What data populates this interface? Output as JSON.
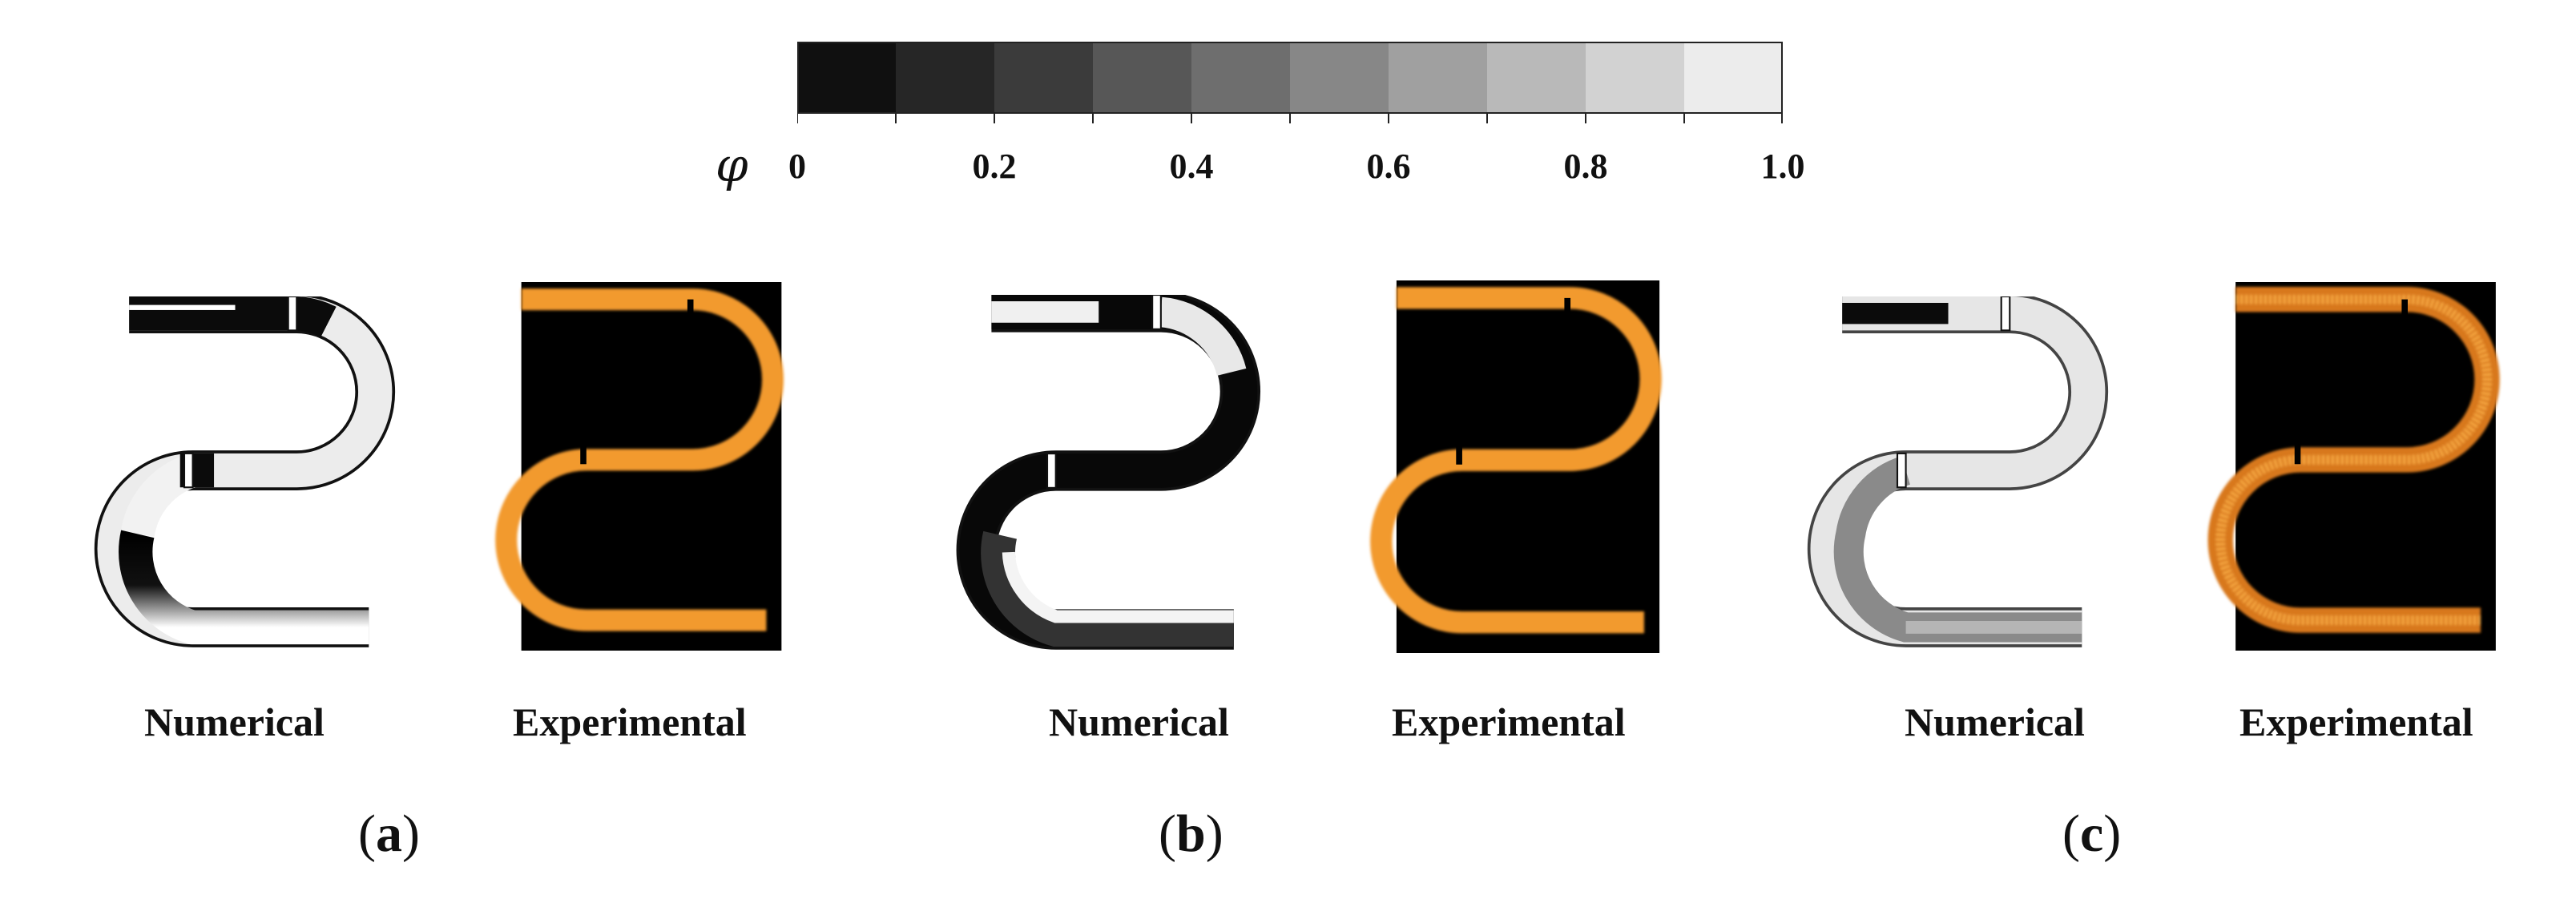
{
  "colorbar": {
    "symbol": "φ",
    "tick_labels": [
      "0",
      "0.2",
      "0.4",
      "0.6",
      "0.8",
      "1.0"
    ],
    "bands": [
      "#101010",
      "#262626",
      "#3b3b3b",
      "#575757",
      "#6e6e6e",
      "#878787",
      "#a0a0a0",
      "#b9b9b9",
      "#d2d2d2",
      "#ececec"
    ]
  },
  "panels": [
    {
      "letter": "a",
      "numerical_label": "Numerical",
      "experimental_label": "Experimental"
    },
    {
      "letter": "b",
      "numerical_label": "Numerical",
      "experimental_label": "Experimental"
    },
    {
      "letter": "c",
      "numerical_label": "Numerical",
      "experimental_label": "Experimental"
    }
  ],
  "colors": {
    "experimental_glow": "#f29a2e",
    "background_dark": "#000000"
  }
}
